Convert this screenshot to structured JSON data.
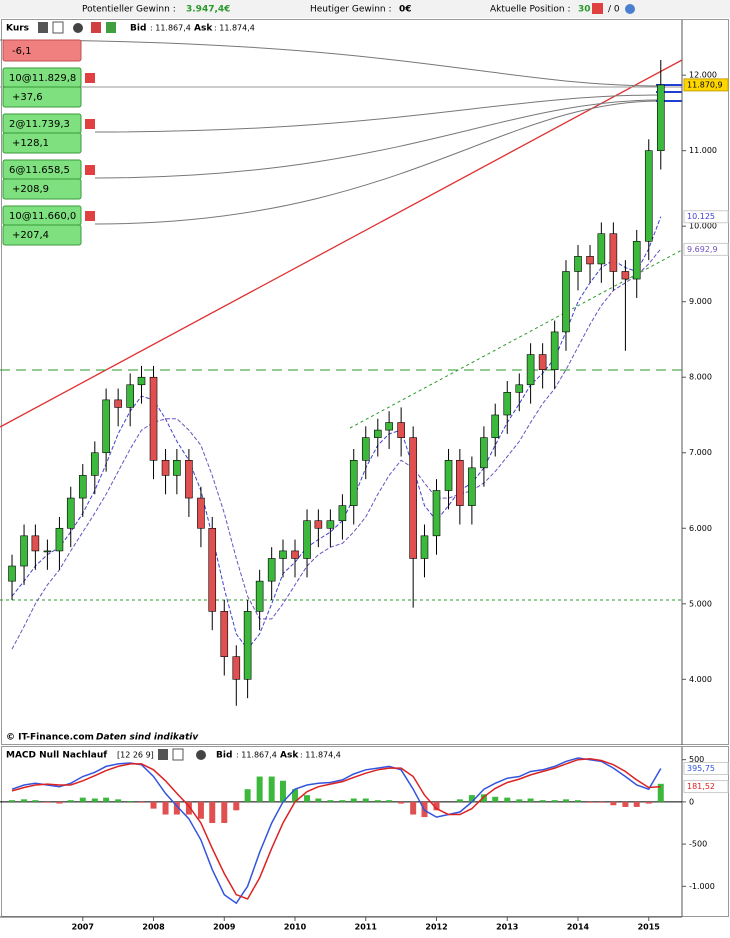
{
  "toolbar": {
    "potential_label": "Potentieller Gewinn :",
    "potential_value": "3.947,4€",
    "today_label": "Heutiger Gewinn :",
    "today_value": "0€",
    "position_label": "Aktuelle Position :",
    "position_value": "30",
    "position_rest": "/ 0"
  },
  "chart_data": [
    {
      "type": "candlestick",
      "title": "Kurs",
      "bid_label": "Bid",
      "bid": ": 11.867,4",
      "ask_label": "Ask",
      "ask": ": 11.874,4",
      "x": [
        2006.0,
        2006.17,
        2006.33,
        2006.5,
        2006.67,
        2006.83,
        2007.0,
        2007.17,
        2007.33,
        2007.5,
        2007.67,
        2007.83,
        2008.0,
        2008.17,
        2008.33,
        2008.5,
        2008.67,
        2008.83,
        2009.0,
        2009.17,
        2009.33,
        2009.5,
        2009.67,
        2009.83,
        2010.0,
        2010.17,
        2010.33,
        2010.5,
        2010.67,
        2010.83,
        2011.0,
        2011.17,
        2011.33,
        2011.5,
        2011.67,
        2011.83,
        2012.0,
        2012.17,
        2012.33,
        2012.5,
        2012.67,
        2012.83,
        2013.0,
        2013.17,
        2013.33,
        2013.5,
        2013.67,
        2013.83,
        2014.0,
        2014.17,
        2014.33,
        2014.5,
        2014.67,
        2014.83,
        2015.0,
        2015.17
      ],
      "open": [
        5300,
        5500,
        5900,
        5700,
        5700,
        6000,
        6400,
        6700,
        7000,
        7700,
        7600,
        7900,
        8000,
        6900,
        6700,
        6900,
        6400,
        6000,
        4900,
        4300,
        4000,
        4900,
        5300,
        5600,
        5700,
        5600,
        6100,
        6000,
        6100,
        6300,
        6900,
        7200,
        7300,
        7400,
        7200,
        5600,
        5900,
        6500,
        6900,
        6300,
        6800,
        7200,
        7500,
        7800,
        7900,
        8300,
        8100,
        8600,
        9400,
        9600,
        9500,
        9900,
        9400,
        9300,
        9800,
        11000
      ],
      "high": [
        5650,
        6050,
        6050,
        5850,
        6150,
        6550,
        6850,
        7150,
        7850,
        7850,
        8050,
        8150,
        8150,
        7050,
        7050,
        7050,
        6550,
        6150,
        5050,
        4450,
        5050,
        5450,
        5750,
        5850,
        5850,
        6250,
        6250,
        6250,
        6450,
        7050,
        7350,
        7450,
        7550,
        7600,
        7350,
        6050,
        6650,
        7050,
        7050,
        6950,
        7350,
        7650,
        7950,
        8050,
        8450,
        8450,
        8750,
        9550,
        9750,
        9750,
        10050,
        10050,
        9550,
        9950,
        11150,
        12200
      ],
      "low": [
        5050,
        5250,
        5450,
        5450,
        5450,
        5750,
        6150,
        6450,
        6750,
        7350,
        7350,
        7650,
        6650,
        6450,
        6450,
        6150,
        5750,
        4650,
        4050,
        3650,
        3750,
        4650,
        5050,
        5350,
        5350,
        5350,
        5750,
        5750,
        5850,
        6050,
        6650,
        6950,
        7050,
        6950,
        4950,
        5350,
        5650,
        6250,
        6050,
        6050,
        6550,
        6950,
        7250,
        7550,
        7650,
        7850,
        7850,
        8350,
        9150,
        9250,
        9250,
        9150,
        8350,
        9050,
        9550,
        10750
      ],
      "close": [
        5500,
        5900,
        5700,
        5700,
        6000,
        6400,
        6700,
        7000,
        7700,
        7600,
        7900,
        8000,
        6900,
        6700,
        6900,
        6400,
        6000,
        4900,
        4300,
        4000,
        4900,
        5300,
        5600,
        5700,
        5600,
        6100,
        6000,
        6100,
        6300,
        6900,
        7200,
        7300,
        7400,
        7200,
        5600,
        5900,
        6500,
        6900,
        6300,
        6800,
        7200,
        7500,
        7800,
        7900,
        8300,
        8100,
        8600,
        9400,
        9600,
        9500,
        9900,
        9400,
        9300,
        9800,
        11000,
        11870
      ],
      "up_color": "#3cb93c",
      "down_color": "#e05050",
      "moving_averages": [
        {
          "color": "#4040d0",
          "values": [
            5100,
            5300,
            5500,
            5650,
            5750,
            5950,
            6200,
            6500,
            6850,
            7250,
            7550,
            7750,
            7700,
            7450,
            7150,
            6900,
            6500,
            5900,
            5200,
            4600,
            4400,
            4600,
            5000,
            5400,
            5550,
            5750,
            5850,
            5950,
            6100,
            6400,
            6800,
            7100,
            7250,
            7300,
            6800,
            6300,
            6100,
            6300,
            6500,
            6600,
            6800,
            7100,
            7400,
            7650,
            7900,
            8050,
            8250,
            8600,
            9000,
            9250,
            9450,
            9550,
            9450,
            9400,
            9700,
            10125
          ]
        },
        {
          "color": "#7050c0",
          "values": [
            4400,
            4700,
            5000,
            5250,
            5450,
            5700,
            5950,
            6200,
            6450,
            6750,
            7050,
            7300,
            7400,
            7450,
            7450,
            7300,
            7100,
            6700,
            6200,
            5600,
            5100,
            4800,
            4800,
            5000,
            5250,
            5500,
            5650,
            5750,
            5800,
            5950,
            6150,
            6450,
            6700,
            6900,
            6800,
            6600,
            6400,
            6400,
            6450,
            6500,
            6600,
            6750,
            6950,
            7150,
            7400,
            7650,
            7850,
            8100,
            8400,
            8700,
            8950,
            9150,
            9250,
            9350,
            9500,
            9700
          ]
        }
      ],
      "ylim": [
        3170,
        12730
      ],
      "xlim": [
        2005.83,
        2015.47
      ],
      "yticks": [
        {
          "value": 4000,
          "label": "4.000"
        },
        {
          "value": 5000,
          "label": "5.000"
        },
        {
          "value": 6000,
          "label": "6.000"
        },
        {
          "value": 7000,
          "label": "7.000"
        },
        {
          "value": 8000,
          "label": "8.000"
        },
        {
          "value": 9000,
          "label": "9.000"
        },
        {
          "value": 10000,
          "label": "10.000"
        },
        {
          "value": 11000,
          "label": "11.000"
        },
        {
          "value": 12000,
          "label": "12.000"
        }
      ],
      "price_tags": [
        {
          "label": "11.870,9",
          "value": 11870.9,
          "color": "#000000",
          "bg": "#ffd700"
        },
        {
          "label": "10.125",
          "value": 10125,
          "color": "#4040d0",
          "bg": "#ffffff"
        },
        {
          "label": "9.692,9",
          "value": 9692.9,
          "color": "#7050c0",
          "bg": "#ffffff"
        }
      ],
      "top_pnl": "-6,1",
      "positions": [
        {
          "order": "10@11.829,8",
          "pnl": "+37,6"
        },
        {
          "order": "2@11.739,3",
          "pnl": "+128,1"
        },
        {
          "order": "6@11.658,5",
          "pnl": "+208,9"
        },
        {
          "order": "10@11.660,0",
          "pnl": "+207,4"
        }
      ],
      "copyright": "© IT-Finance.com",
      "note": "Daten sind indikativ"
    },
    {
      "type": "macd",
      "title": "MACD Null Nachlauf",
      "params": "[12 26 9]",
      "bid_label": "Bid",
      "bid": ": 11.867,4",
      "ask_label": "Ask",
      "ask": ": 11.874,4",
      "macd": [
        150,
        200,
        220,
        200,
        180,
        220,
        300,
        350,
        420,
        450,
        460,
        440,
        300,
        100,
        -50,
        -200,
        -450,
        -800,
        -1100,
        -1200,
        -1000,
        -600,
        -250,
        0,
        150,
        200,
        220,
        230,
        260,
        330,
        380,
        400,
        420,
        380,
        150,
        -100,
        -180,
        -150,
        -120,
        0,
        150,
        220,
        280,
        300,
        360,
        380,
        420,
        480,
        520,
        500,
        480,
        400,
        300,
        200,
        150,
        395.75
      ],
      "signal": [
        130,
        170,
        200,
        210,
        200,
        200,
        250,
        310,
        370,
        420,
        450,
        450,
        380,
        250,
        100,
        -50,
        -250,
        -550,
        -850,
        -1100,
        -1150,
        -900,
        -550,
        -250,
        0,
        120,
        180,
        210,
        240,
        290,
        340,
        380,
        400,
        400,
        300,
        80,
        -80,
        -150,
        -150,
        -80,
        60,
        160,
        230,
        270,
        320,
        360,
        400,
        450,
        500,
        510,
        490,
        440,
        360,
        260,
        170,
        181.52
      ],
      "histogram": [
        20,
        30,
        20,
        -10,
        -20,
        20,
        50,
        40,
        50,
        30,
        10,
        -10,
        -80,
        -150,
        -150,
        -150,
        -200,
        -250,
        -250,
        -100,
        150,
        300,
        300,
        250,
        150,
        80,
        40,
        20,
        20,
        40,
        40,
        20,
        20,
        -20,
        -150,
        -180,
        -100,
        0,
        30,
        80,
        90,
        60,
        50,
        30,
        40,
        20,
        20,
        30,
        20,
        -10,
        -10,
        -40,
        -60,
        -60,
        -20,
        214
      ],
      "macd_color": "#3355dd",
      "signal_color": "#dd2222",
      "value_tags": [
        {
          "label": "395,75",
          "color": "#3355dd"
        },
        {
          "label": "181,52",
          "color": "#dd2222"
        }
      ],
      "ylim": [
        -1340,
        650
      ],
      "yticks": [
        500,
        0,
        -500,
        {
          "value": -1000,
          "label": "-1.000"
        }
      ],
      "xticks": [
        2007,
        2008,
        2009,
        2010,
        2011,
        2012,
        2013,
        2014,
        2015
      ]
    }
  ]
}
